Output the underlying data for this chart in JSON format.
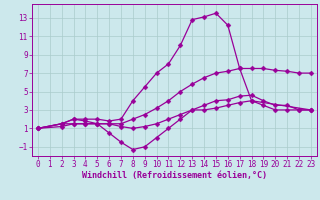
{
  "xlabel": "Windchill (Refroidissement éolien,°C)",
  "bg_color": "#cce8ec",
  "line_color": "#990099",
  "grid_color": "#aacccc",
  "xlim": [
    -0.5,
    23.5
  ],
  "ylim": [
    -2,
    14.5
  ],
  "xticks": [
    0,
    1,
    2,
    3,
    4,
    5,
    6,
    7,
    8,
    9,
    10,
    11,
    12,
    13,
    14,
    15,
    16,
    17,
    18,
    19,
    20,
    21,
    22,
    23
  ],
  "yticks": [
    -1,
    1,
    3,
    5,
    7,
    9,
    11,
    13
  ],
  "line1_x": [
    0,
    2,
    3,
    4,
    5,
    6,
    7,
    8,
    9,
    10,
    11,
    12,
    13,
    14,
    15,
    16,
    17,
    18,
    23
  ],
  "line1_y": [
    1,
    1.5,
    2,
    2,
    2,
    1.8,
    2,
    4,
    5.5,
    7,
    8,
    10,
    12.8,
    13.1,
    13.5,
    12.2,
    7.5,
    4,
    3
  ],
  "line2_x": [
    0,
    2,
    3,
    4,
    5,
    6,
    7,
    8,
    9,
    10,
    11,
    12,
    13,
    14,
    15,
    16,
    17,
    18,
    19,
    20,
    21,
    22,
    23
  ],
  "line2_y": [
    1,
    1.5,
    1.5,
    1.5,
    1.5,
    1.5,
    1.5,
    2,
    2.5,
    3.2,
    4,
    5,
    5.8,
    6.5,
    7,
    7.2,
    7.5,
    7.5,
    7.5,
    7.3,
    7.2,
    7.0,
    7.0
  ],
  "line3_x": [
    0,
    2,
    3,
    4,
    5,
    6,
    7,
    8,
    9,
    10,
    11,
    12,
    13,
    14,
    15,
    16,
    17,
    18,
    19,
    20,
    21,
    22,
    23
  ],
  "line3_y": [
    1,
    1.5,
    2,
    1.8,
    1.5,
    0.5,
    -0.5,
    -1.3,
    -1,
    0,
    1,
    2,
    3,
    3.5,
    4.0,
    4.1,
    4.5,
    4.6,
    4.0,
    3.5,
    3.5,
    3.0,
    3.0
  ],
  "line4_x": [
    0,
    2,
    3,
    4,
    5,
    6,
    7,
    8,
    9,
    10,
    11,
    12,
    13,
    14,
    15,
    16,
    17,
    18,
    19,
    20,
    21,
    22,
    23
  ],
  "line4_y": [
    1,
    1.2,
    1.5,
    1.5,
    1.5,
    1.5,
    1.2,
    1.0,
    1.2,
    1.5,
    2,
    2.5,
    3,
    3,
    3.2,
    3.5,
    3.8,
    4.0,
    3.5,
    3.0,
    3.0,
    3.0,
    3.0
  ],
  "marker_size": 2.5,
  "line_width": 0.9,
  "tick_fontsize": 5.5,
  "xlabel_fontsize": 6
}
